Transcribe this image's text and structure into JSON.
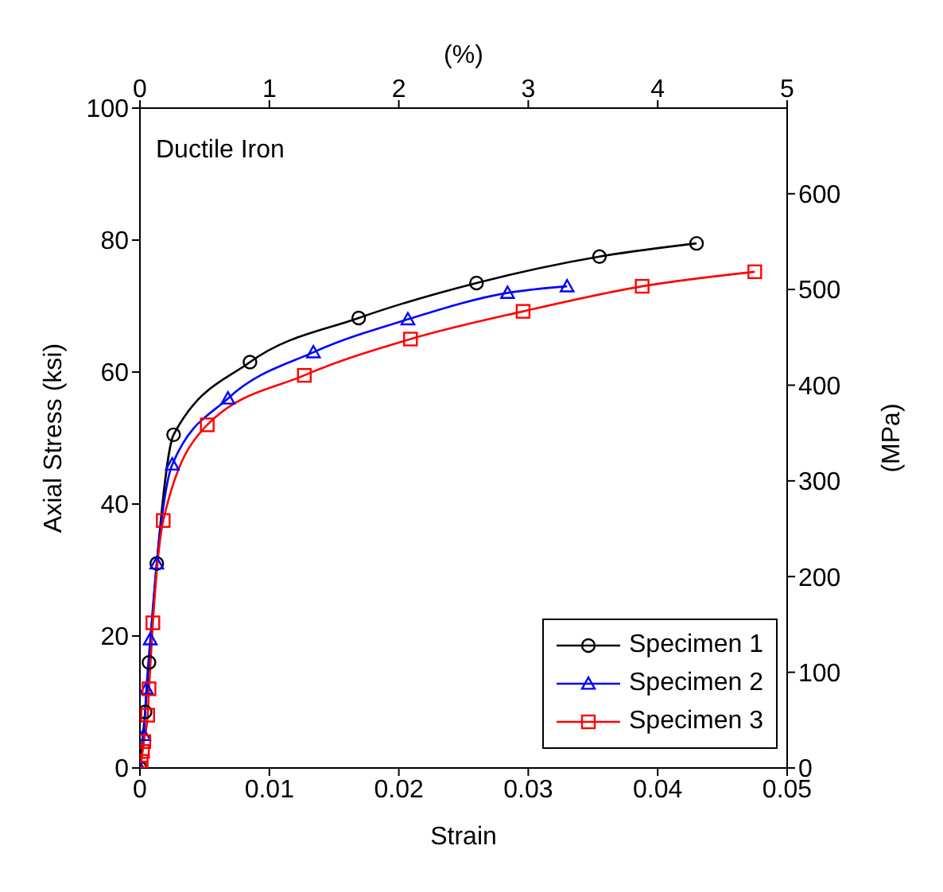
{
  "chart_data": {
    "type": "line",
    "xlabel": "Strain",
    "ylabel": "Axial Stress (ksi)",
    "x2label": "(%)",
    "y2label": "(MPa)",
    "annotations": [
      "Ductile Iron"
    ],
    "xlim": [
      0,
      0.05
    ],
    "xticks": [
      0,
      0.01,
      0.02,
      0.03,
      0.04,
      0.05
    ],
    "x2lim": [
      0,
      5
    ],
    "x2ticks": [
      0,
      1,
      2,
      3,
      4,
      5
    ],
    "ylim": [
      0,
      100
    ],
    "yticks": [
      0,
      20,
      40,
      60,
      80,
      100
    ],
    "y2lim": [
      0,
      689.5
    ],
    "y2ticks": [
      0,
      100,
      200,
      300,
      400,
      500,
      600
    ],
    "grid": false,
    "legend": "bottom right",
    "line_style": "solid",
    "series": [
      {
        "name": "Specimen 1",
        "color": "#000000",
        "marker": "circle",
        "x": [
          0,
          0.0004,
          0.0007,
          0.0013,
          0.0026,
          0.0085,
          0.0169,
          0.026,
          0.0355,
          0.043
        ],
        "values": [
          0,
          8.5,
          16,
          31,
          50.5,
          61.5,
          68.2,
          73.5,
          77.5,
          79.5
        ]
      },
      {
        "name": "Specimen 2",
        "color": "#0000ff",
        "marker": "triangle",
        "x": [
          0,
          0.0003,
          0.0005,
          0.0008,
          0.0013,
          0.0025,
          0.0068,
          0.0134,
          0.0207,
          0.0284,
          0.033
        ],
        "values": [
          0,
          5,
          12,
          19.5,
          31,
          46,
          56,
          63,
          68,
          72,
          73
        ]
      },
      {
        "name": "Specimen 3",
        "color": "#ff0000",
        "marker": "square",
        "x": [
          0,
          0.0001,
          0.0002,
          0.0003,
          0.0006,
          0.0007,
          0.001,
          0.0018,
          0.0052,
          0.0127,
          0.0209,
          0.0296,
          0.0388,
          0.0475
        ],
        "values": [
          0,
          1,
          2.5,
          4,
          8,
          12,
          22,
          37.5,
          52,
          59.5,
          65,
          69.2,
          73,
          75.2
        ]
      }
    ]
  }
}
